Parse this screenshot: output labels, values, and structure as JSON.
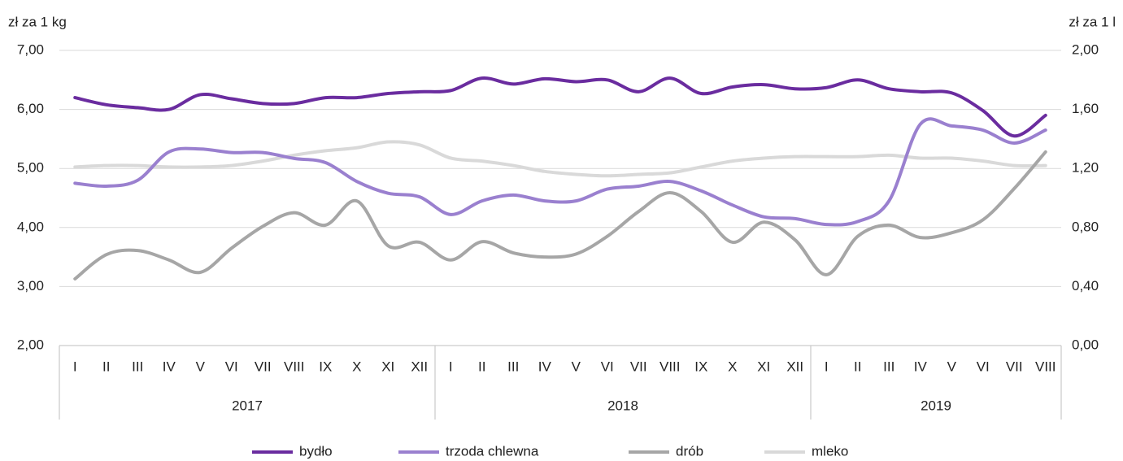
{
  "chart_data": {
    "type": "line",
    "y_label": "zł za 1 kg",
    "y2_label": "zł za 1 l",
    "categories": [
      "I",
      "II",
      "III",
      "IV",
      "V",
      "VI",
      "VII",
      "VIII",
      "IX",
      "X",
      "XI",
      "XII",
      "I",
      "II",
      "III",
      "IV",
      "V",
      "VI",
      "VII",
      "VIII",
      "IX",
      "X",
      "XI",
      "XII",
      "I",
      "II",
      "III",
      "IV",
      "V",
      "VI",
      "VII",
      "VIII"
    ],
    "years": [
      "2017",
      "2018",
      "2019"
    ],
    "ylim": [
      2,
      7
    ],
    "yticks": [
      {
        "value": 2,
        "label": "2,00"
      },
      {
        "value": 3,
        "label": "3,00"
      },
      {
        "value": 4,
        "label": "4,00"
      },
      {
        "value": 5,
        "label": "5,00"
      },
      {
        "value": 6,
        "label": "6,00"
      },
      {
        "value": 7,
        "label": "7,00"
      }
    ],
    "y2lim": [
      0,
      2
    ],
    "y2ticks": [
      {
        "value": 0,
        "label": "0,00"
      },
      {
        "value": 0.4,
        "label": "0,40"
      },
      {
        "value": 0.8,
        "label": "0,80"
      },
      {
        "value": 1.2,
        "label": "1,20"
      },
      {
        "value": 1.6,
        "label": "1,60"
      },
      {
        "value": 2,
        "label": "2,00"
      }
    ],
    "grid": true,
    "legend": "bottom",
    "series": [
      {
        "name": "bydło",
        "color": "#6a2c9f",
        "values": [
          6.2,
          6.08,
          6.03,
          6.0,
          6.25,
          6.18,
          6.1,
          6.1,
          6.2,
          6.2,
          6.27,
          6.3,
          6.32,
          6.53,
          6.43,
          6.52,
          6.47,
          6.5,
          6.3,
          6.53,
          6.27,
          6.38,
          6.42,
          6.35,
          6.37,
          6.5,
          6.35,
          6.3,
          6.28,
          5.98,
          5.55,
          5.9
        ]
      },
      {
        "name": "trzoda chlewna",
        "color": "#9a80cf",
        "values": [
          4.75,
          4.7,
          4.8,
          5.28,
          5.33,
          5.27,
          5.27,
          5.17,
          5.1,
          4.78,
          4.58,
          4.52,
          4.22,
          4.45,
          4.55,
          4.45,
          4.45,
          4.65,
          4.7,
          4.78,
          4.62,
          4.38,
          4.18,
          4.15,
          4.05,
          4.1,
          4.45,
          5.75,
          5.72,
          5.65,
          5.43,
          5.65
        ]
      },
      {
        "name": "drób",
        "color": "#a6a6a6",
        "values": [
          3.13,
          3.54,
          3.61,
          3.45,
          3.24,
          3.65,
          4.02,
          4.25,
          4.04,
          4.45,
          3.69,
          3.75,
          3.45,
          3.76,
          3.57,
          3.5,
          3.55,
          3.85,
          4.27,
          4.59,
          4.27,
          3.75,
          4.09,
          3.79,
          3.2,
          3.85,
          4.04,
          3.83,
          3.91,
          4.13,
          4.66,
          5.28
        ]
      },
      {
        "name": "mleko",
        "color": "#d9d9d9",
        "axis": "y2",
        "values": [
          1.21,
          1.22,
          1.22,
          1.21,
          1.21,
          1.22,
          1.25,
          1.29,
          1.32,
          1.34,
          1.38,
          1.36,
          1.27,
          1.25,
          1.22,
          1.18,
          1.16,
          1.15,
          1.16,
          1.17,
          1.21,
          1.25,
          1.27,
          1.28,
          1.28,
          1.28,
          1.29,
          1.27,
          1.27,
          1.25,
          1.22,
          1.22
        ]
      }
    ]
  }
}
